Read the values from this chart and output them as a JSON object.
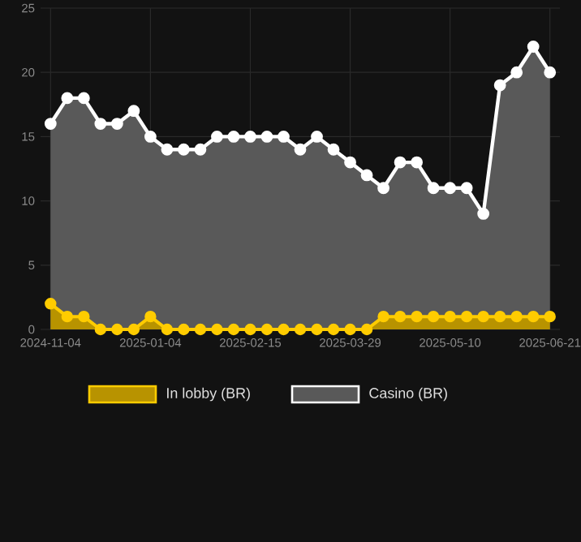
{
  "chart_data": {
    "type": "area",
    "categories": [
      "2024-11-04",
      null,
      null,
      null,
      null,
      null,
      "2025-01-04",
      null,
      null,
      null,
      null,
      null,
      "2025-02-15",
      null,
      null,
      null,
      null,
      null,
      "2025-03-29",
      null,
      null,
      null,
      null,
      null,
      "2025-05-10",
      null,
      null,
      null,
      null,
      null,
      "2025-06-21"
    ],
    "series": [
      {
        "name": "In lobby (BR)",
        "color": "#ffcc00",
        "values": [
          2,
          1,
          1,
          0,
          0,
          0,
          1,
          0,
          0,
          0,
          0,
          0,
          0,
          0,
          0,
          0,
          0,
          0,
          0,
          0,
          1,
          1,
          1,
          1,
          1,
          1,
          1,
          1,
          1,
          1,
          1
        ]
      },
      {
        "name": "Casino (BR)",
        "color": "#ffffff",
        "values": [
          16,
          18,
          18,
          16,
          16,
          17,
          15,
          14,
          14,
          14,
          15,
          15,
          15,
          15,
          15,
          14,
          15,
          14,
          13,
          12,
          11,
          13,
          13,
          11,
          11,
          11,
          9,
          19,
          20,
          22,
          20
        ]
      }
    ],
    "ylim": [
      0,
      25
    ],
    "yticks": [
      0,
      5,
      10,
      15,
      20,
      25
    ],
    "grid": true,
    "legend": "bottom",
    "marker": "circle"
  }
}
